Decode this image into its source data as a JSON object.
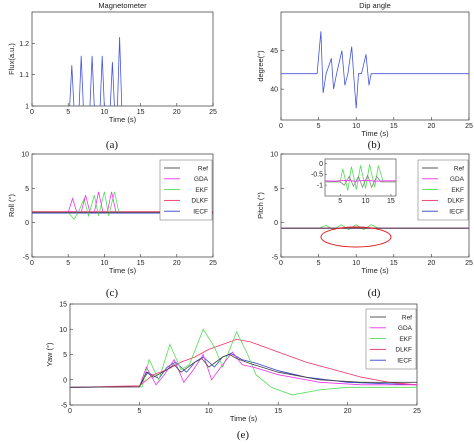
{
  "chart_data": [
    {
      "id": "a",
      "type": "line",
      "caption": "(a)",
      "title": "Magnetometer",
      "xlabel": "Time (s)",
      "ylabel": "Flux(a.u.)",
      "xlim": [
        0,
        25
      ],
      "ylim": [
        1,
        1.3
      ],
      "xticks": [
        "0",
        "5",
        "10",
        "15",
        "20",
        "25"
      ],
      "yticks": [
        "1",
        "1.1",
        "1.2"
      ],
      "ytick_values": [
        1,
        1.1,
        1.2
      ],
      "series": [
        {
          "color": "#4455dd",
          "x": [
            0,
            5.2,
            5.5,
            5.8,
            6.5,
            6.8,
            7.1,
            8,
            8.3,
            8.6,
            9.4,
            9.7,
            10,
            10.8,
            11.1,
            11.4,
            11.8,
            12.1,
            12.4,
            25
          ],
          "y": [
            0.995,
            0.995,
            1.13,
            0.995,
            0.995,
            1.16,
            0.995,
            0.995,
            1.16,
            0.995,
            0.995,
            1.16,
            0.995,
            0.995,
            1.14,
            0.995,
            0.995,
            1.22,
            0.995,
            0.995
          ]
        }
      ]
    },
    {
      "id": "b",
      "type": "line",
      "caption": "(b)",
      "title": "Dip angle",
      "xlabel": "Time (s)",
      "ylabel": "degree(°)",
      "xlim": [
        0,
        25
      ],
      "ylim": [
        36,
        50
      ],
      "xticks": [
        "0",
        "5",
        "10",
        "15",
        "20",
        "25"
      ],
      "yticks": [
        "40",
        "45"
      ],
      "ytick_values": [
        40,
        45
      ],
      "series": [
        {
          "color": "#4455dd",
          "x": [
            0,
            4.8,
            5.3,
            5.6,
            6.0,
            6.7,
            7.0,
            7.4,
            8.1,
            8.5,
            8.9,
            9.4,
            9.8,
            10.0,
            10.3,
            10.7,
            11.3,
            11.7,
            12.0,
            12.6,
            13.0,
            25
          ],
          "y": [
            42,
            42,
            47.5,
            39.5,
            42,
            44,
            40,
            42,
            45,
            40.5,
            42,
            45.5,
            40,
            37.5,
            42,
            42,
            44.5,
            40.5,
            42,
            42,
            42,
            42
          ]
        }
      ]
    },
    {
      "id": "c",
      "type": "line",
      "caption": "(c)",
      "xlabel": "Time (s)",
      "ylabel": "Roll (°)",
      "xlim": [
        0,
        25
      ],
      "ylim": [
        -5,
        10
      ],
      "xticks": [
        "0",
        "5",
        "10",
        "15",
        "20",
        "25"
      ],
      "yticks": [
        "-5",
        "0",
        "5",
        "10"
      ],
      "ytick_values": [
        -5,
        0,
        5,
        10
      ],
      "legend": "top-right",
      "series": [
        {
          "name": "Ref",
          "color": "#444444",
          "x": [
            0,
            25
          ],
          "y": [
            1.5,
            1.5
          ]
        },
        {
          "name": "GDA",
          "color": "#ee33ee",
          "x": [
            0,
            5,
            5.6,
            6.2,
            6.8,
            7.4,
            8,
            8.6,
            9.2,
            9.8,
            10.4,
            11,
            11.6,
            12.2,
            25
          ],
          "y": [
            1.5,
            1.5,
            3.5,
            1.5,
            1.5,
            4.0,
            1.5,
            1.5,
            4.5,
            1.5,
            1.5,
            4.5,
            1.5,
            1.5,
            1.5
          ]
        },
        {
          "name": "EKF",
          "color": "#55dd55",
          "x": [
            0,
            5,
            5.8,
            6.4,
            7.2,
            7.8,
            8.6,
            9.2,
            10,
            10.6,
            11.4,
            12,
            12.6,
            25
          ],
          "y": [
            1.5,
            1.5,
            0.5,
            1.5,
            3.5,
            1.0,
            4.0,
            1.0,
            4.5,
            1.0,
            4.5,
            1.5,
            1.5,
            1.5
          ]
        },
        {
          "name": "DLKF",
          "color": "#ee3366",
          "x": [
            0,
            25
          ],
          "y": [
            1.6,
            1.6
          ]
        },
        {
          "name": "IECF",
          "color": "#3344cc",
          "x": [
            0,
            25
          ],
          "y": [
            1.4,
            1.4
          ]
        }
      ]
    },
    {
      "id": "d",
      "type": "line",
      "caption": "(d)",
      "xlabel": "Time (s)",
      "ylabel": "Pitch (°)",
      "xlim": [
        0,
        25
      ],
      "ylim": [
        -5,
        10
      ],
      "xticks": [
        "0",
        "5",
        "10",
        "15",
        "20",
        "25"
      ],
      "yticks": [
        "-5",
        "0",
        "5",
        "10"
      ],
      "ytick_values": [
        -5,
        0,
        5,
        10
      ],
      "legend": "top-right",
      "series": [
        {
          "name": "Ref",
          "color": "#444444",
          "x": [
            0,
            25
          ],
          "y": [
            -0.8,
            -0.8
          ]
        },
        {
          "name": "GDA",
          "color": "#ee33ee",
          "x": [
            0,
            25
          ],
          "y": [
            -0.8,
            -0.8
          ]
        },
        {
          "name": "EKF",
          "color": "#55dd55",
          "x": [
            0,
            5,
            6,
            7,
            8,
            9,
            10,
            11,
            12,
            13,
            25
          ],
          "y": [
            -0.8,
            -0.8,
            -0.4,
            -1.0,
            -0.3,
            -1.0,
            -0.3,
            -1.0,
            -0.3,
            -0.8,
            -0.8
          ]
        },
        {
          "name": "DLKF",
          "color": "#ee3366",
          "x": [
            0,
            25
          ],
          "y": [
            -0.8,
            -0.8
          ]
        },
        {
          "name": "IECF",
          "color": "#3344cc",
          "x": [
            0,
            25
          ],
          "y": [
            -0.8,
            -0.8
          ]
        }
      ],
      "inset": {
        "xlim": [
          2,
          16
        ],
        "ylim": [
          -1.5,
          0.2
        ],
        "xticks": [
          "5",
          "10",
          "15"
        ],
        "xtick_values": [
          5,
          10,
          15
        ],
        "yticks": [
          "0",
          "-0.5",
          "-1"
        ],
        "ytick_values": [
          0,
          -0.5,
          -1
        ],
        "series": [
          {
            "color": "#55dd55",
            "x": [
              2,
              5,
              5.5,
              6.5,
              7.2,
              8.2,
              9,
              10,
              10.8,
              11.8,
              12.5,
              13.5,
              16
            ],
            "y": [
              -0.85,
              -0.85,
              -0.25,
              -1.25,
              -0.15,
              -1.2,
              -0.1,
              -1.15,
              -0.05,
              -1.1,
              -0.1,
              -0.85,
              -0.85
            ]
          },
          {
            "color": "#888888",
            "x": [
              2,
              5,
              5.8,
              6.8,
              7.6,
              8.6,
              9.4,
              10.4,
              11.2,
              12.2,
              13,
              16
            ],
            "y": [
              -0.85,
              -0.85,
              -1.0,
              -0.6,
              -1.05,
              -0.6,
              -1.1,
              -0.55,
              -1.1,
              -0.6,
              -0.85,
              -0.85
            ]
          },
          {
            "color": "#ee33ee",
            "x": [
              2,
              4,
              6,
              8,
              10,
              12,
              14,
              16
            ],
            "y": [
              -0.8,
              -0.82,
              -0.78,
              -0.82,
              -0.78,
              -0.82,
              -0.8,
              -0.8
            ]
          }
        ]
      }
    },
    {
      "id": "e",
      "type": "line",
      "caption": "(e)",
      "xlabel": "Time (s)",
      "ylabel": "Yaw (°)",
      "xlim": [
        0,
        25
      ],
      "ylim": [
        -5,
        15
      ],
      "xticks": [
        "0",
        "5",
        "10",
        "15",
        "20",
        "25"
      ],
      "yticks": [
        "-5",
        "0",
        "5",
        "10",
        "15"
      ],
      "ytick_values": [
        -5,
        0,
        5,
        10,
        15
      ],
      "legend": "top-right",
      "series": [
        {
          "name": "Ref",
          "color": "#444444",
          "x": [
            0,
            5,
            5.5,
            6,
            7,
            7.5,
            8,
            9,
            9.5,
            10,
            11,
            11.5,
            12,
            13,
            15,
            18,
            21,
            25
          ],
          "y": [
            -1.5,
            -1.4,
            1.5,
            0.5,
            2.0,
            3.0,
            1.5,
            3.5,
            4.2,
            2.5,
            4.5,
            5.0,
            4.2,
            3.2,
            1.5,
            0.0,
            -0.5,
            -0.5
          ]
        },
        {
          "name": "GDA",
          "color": "#ee33ee",
          "x": [
            0,
            5,
            5.5,
            6.2,
            6.8,
            7.5,
            8.2,
            8.9,
            9.6,
            10.2,
            11,
            11.7,
            12.4,
            13.2,
            15,
            18,
            21,
            25
          ],
          "y": [
            -1.5,
            -1.4,
            2.5,
            -1.0,
            1.0,
            4.0,
            -0.5,
            2.0,
            5.0,
            0.0,
            3.0,
            5.5,
            3.0,
            2.5,
            1.0,
            -0.5,
            -1.0,
            -1.0
          ]
        },
        {
          "name": "EKF",
          "color": "#55dd55",
          "x": [
            0,
            5.2,
            5.7,
            6.4,
            7.2,
            8.0,
            8.6,
            9.6,
            10.4,
            11.0,
            12.0,
            12.8,
            13.4,
            14.5,
            16,
            18,
            20,
            22,
            25
          ],
          "y": [
            -1.5,
            -1.4,
            4.0,
            0.0,
            7.0,
            2.0,
            3.0,
            10.0,
            6.5,
            2.5,
            9.5,
            5.0,
            1.0,
            -1.5,
            -3.0,
            -2.0,
            -1.5,
            -1.5,
            -1.5
          ]
        },
        {
          "name": "DLKF",
          "color": "#ee3366",
          "x": [
            0,
            5,
            6,
            7,
            8,
            9,
            10,
            11,
            12,
            13,
            15,
            17,
            19,
            21,
            23,
            25
          ],
          "y": [
            -1.5,
            -1.2,
            1.0,
            2.0,
            3.5,
            4.5,
            6.0,
            7.0,
            8.0,
            7.5,
            5.5,
            3.5,
            2.0,
            0.5,
            -0.5,
            -1.0
          ]
        },
        {
          "name": "IECF",
          "color": "#3344cc",
          "x": [
            0,
            5,
            5.6,
            6.4,
            7,
            7.6,
            8.4,
            9,
            9.6,
            10.4,
            11,
            11.6,
            12.4,
            13.5,
            15,
            17,
            20,
            25
          ],
          "y": [
            -1.5,
            -1.4,
            1.5,
            0.2,
            2.5,
            3.5,
            1.5,
            3.5,
            4.5,
            2.5,
            4.5,
            5.2,
            4.0,
            3.2,
            1.8,
            0.5,
            -0.5,
            -1.0
          ]
        }
      ]
    }
  ]
}
